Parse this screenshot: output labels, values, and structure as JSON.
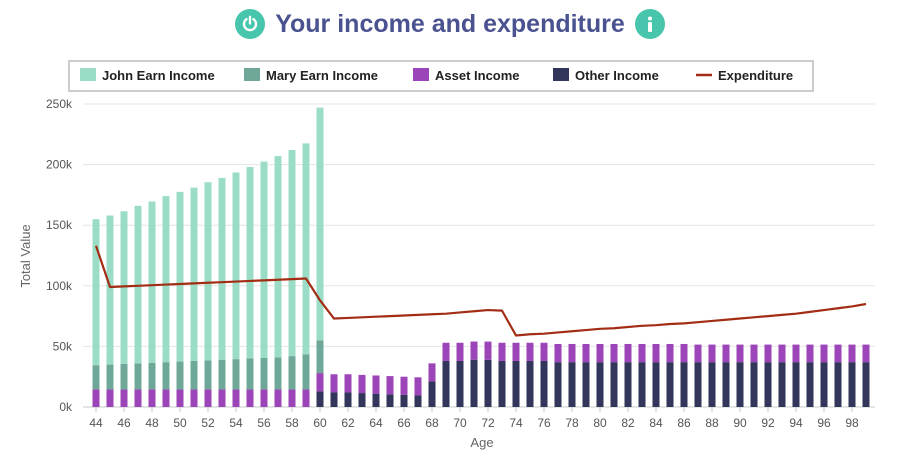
{
  "header": {
    "title": "Your income and expenditure",
    "left_icon": "power-icon",
    "right_icon": "info-icon",
    "icon_color": "#47c5ad"
  },
  "chart_data": {
    "type": "bar",
    "stacked": true,
    "xlabel": "Age",
    "ylabel": "Total Value",
    "ylim": [
      0,
      250000
    ],
    "y_ticks": [
      "0k",
      "50k",
      "100k",
      "150k",
      "200k",
      "250k"
    ],
    "x_tick_labels": [
      "44",
      "46",
      "48",
      "50",
      "52",
      "54",
      "56",
      "58",
      "60",
      "62",
      "64",
      "66",
      "68",
      "70",
      "72",
      "74",
      "76",
      "78",
      "80",
      "82",
      "84",
      "86",
      "88",
      "90",
      "92",
      "94",
      "96",
      "98"
    ],
    "grid": "horizontal",
    "legend_position": "top",
    "categories": [
      44,
      45,
      46,
      47,
      48,
      49,
      50,
      51,
      52,
      53,
      54,
      55,
      56,
      57,
      58,
      59,
      60,
      61,
      62,
      63,
      64,
      65,
      66,
      67,
      68,
      69,
      70,
      71,
      72,
      73,
      74,
      75,
      76,
      77,
      78,
      79,
      80,
      81,
      82,
      83,
      84,
      85,
      86,
      87,
      88,
      89,
      90,
      91,
      92,
      93,
      94,
      95,
      96,
      97,
      98,
      99
    ],
    "series": [
      {
        "name": "Other Income",
        "color": "#32365a",
        "kind": "bar",
        "values": [
          0,
          0,
          0,
          0,
          0,
          0,
          0,
          0,
          0,
          0,
          0,
          0,
          0,
          0,
          0,
          0,
          13000,
          12000,
          12000,
          11500,
          11000,
          10500,
          10000,
          9500,
          21000,
          38000,
          38000,
          39000,
          39000,
          38000,
          38000,
          38000,
          38000,
          37000,
          37000,
          37000,
          37000,
          37000,
          37000,
          37000,
          37000,
          37000,
          37000,
          37000,
          37000,
          37000,
          37000,
          37000,
          37000,
          37000,
          37000,
          37000,
          37000,
          37000,
          37000,
          37000
        ]
      },
      {
        "name": "Asset Income",
        "color": "#9b45b8",
        "kind": "bar",
        "values": [
          14500,
          14500,
          14500,
          14500,
          14500,
          14500,
          14500,
          14500,
          14500,
          14500,
          14500,
          14500,
          14500,
          14500,
          14500,
          14500,
          15000,
          15000,
          15000,
          15000,
          15000,
          15000,
          15000,
          15000,
          15000,
          15000,
          15000,
          15000,
          15000,
          15000,
          15000,
          15000,
          15000,
          15000,
          15000,
          15000,
          15000,
          15000,
          15000,
          15000,
          15000,
          15000,
          15000,
          14500,
          14500,
          14500,
          14500,
          14500,
          14500,
          14500,
          14500,
          14500,
          14500,
          14500,
          14500,
          14500
        ]
      },
      {
        "name": "Mary Earn Income",
        "color": "#6fa898",
        "kind": "bar",
        "values": [
          20000,
          20500,
          21000,
          21500,
          22000,
          22500,
          23000,
          23500,
          24000,
          24500,
          25000,
          25500,
          26000,
          26500,
          27500,
          29000,
          27000,
          0,
          0,
          0,
          0,
          0,
          0,
          0,
          0,
          0,
          0,
          0,
          0,
          0,
          0,
          0,
          0,
          0,
          0,
          0,
          0,
          0,
          0,
          0,
          0,
          0,
          0,
          0,
          0,
          0,
          0,
          0,
          0,
          0,
          0,
          0,
          0,
          0,
          0,
          0
        ]
      },
      {
        "name": "John Earn Income",
        "color": "#9bdcc6",
        "kind": "bar",
        "values": [
          120500,
          123000,
          126000,
          130000,
          133000,
          137000,
          140000,
          143000,
          147000,
          150000,
          154000,
          158000,
          162000,
          166000,
          170000,
          174000,
          192000,
          0,
          0,
          0,
          0,
          0,
          0,
          0,
          0,
          0,
          0,
          0,
          0,
          0,
          0,
          0,
          0,
          0,
          0,
          0,
          0,
          0,
          0,
          0,
          0,
          0,
          0,
          0,
          0,
          0,
          0,
          0,
          0,
          0,
          0,
          0,
          0,
          0,
          0,
          0
        ]
      },
      {
        "name": "Expenditure",
        "color": "#a32d14",
        "kind": "line",
        "values": [
          133000,
          99000,
          99500,
          100000,
          100500,
          101000,
          101500,
          102000,
          102500,
          103000,
          103500,
          104000,
          104500,
          105000,
          105500,
          106000,
          88000,
          73000,
          73500,
          74000,
          74500,
          75000,
          75500,
          76000,
          76500,
          77000,
          78000,
          79000,
          80000,
          79500,
          59000,
          60000,
          60500,
          61500,
          62500,
          63500,
          64500,
          65000,
          66000,
          67000,
          67500,
          68500,
          69000,
          70000,
          71000,
          72000,
          73000,
          74000,
          75000,
          76000,
          77000,
          78500,
          80000,
          81500,
          83000,
          85000
        ]
      }
    ],
    "legend_order": [
      "John Earn Income",
      "Mary Earn Income",
      "Asset Income",
      "Other Income",
      "Expenditure"
    ]
  }
}
